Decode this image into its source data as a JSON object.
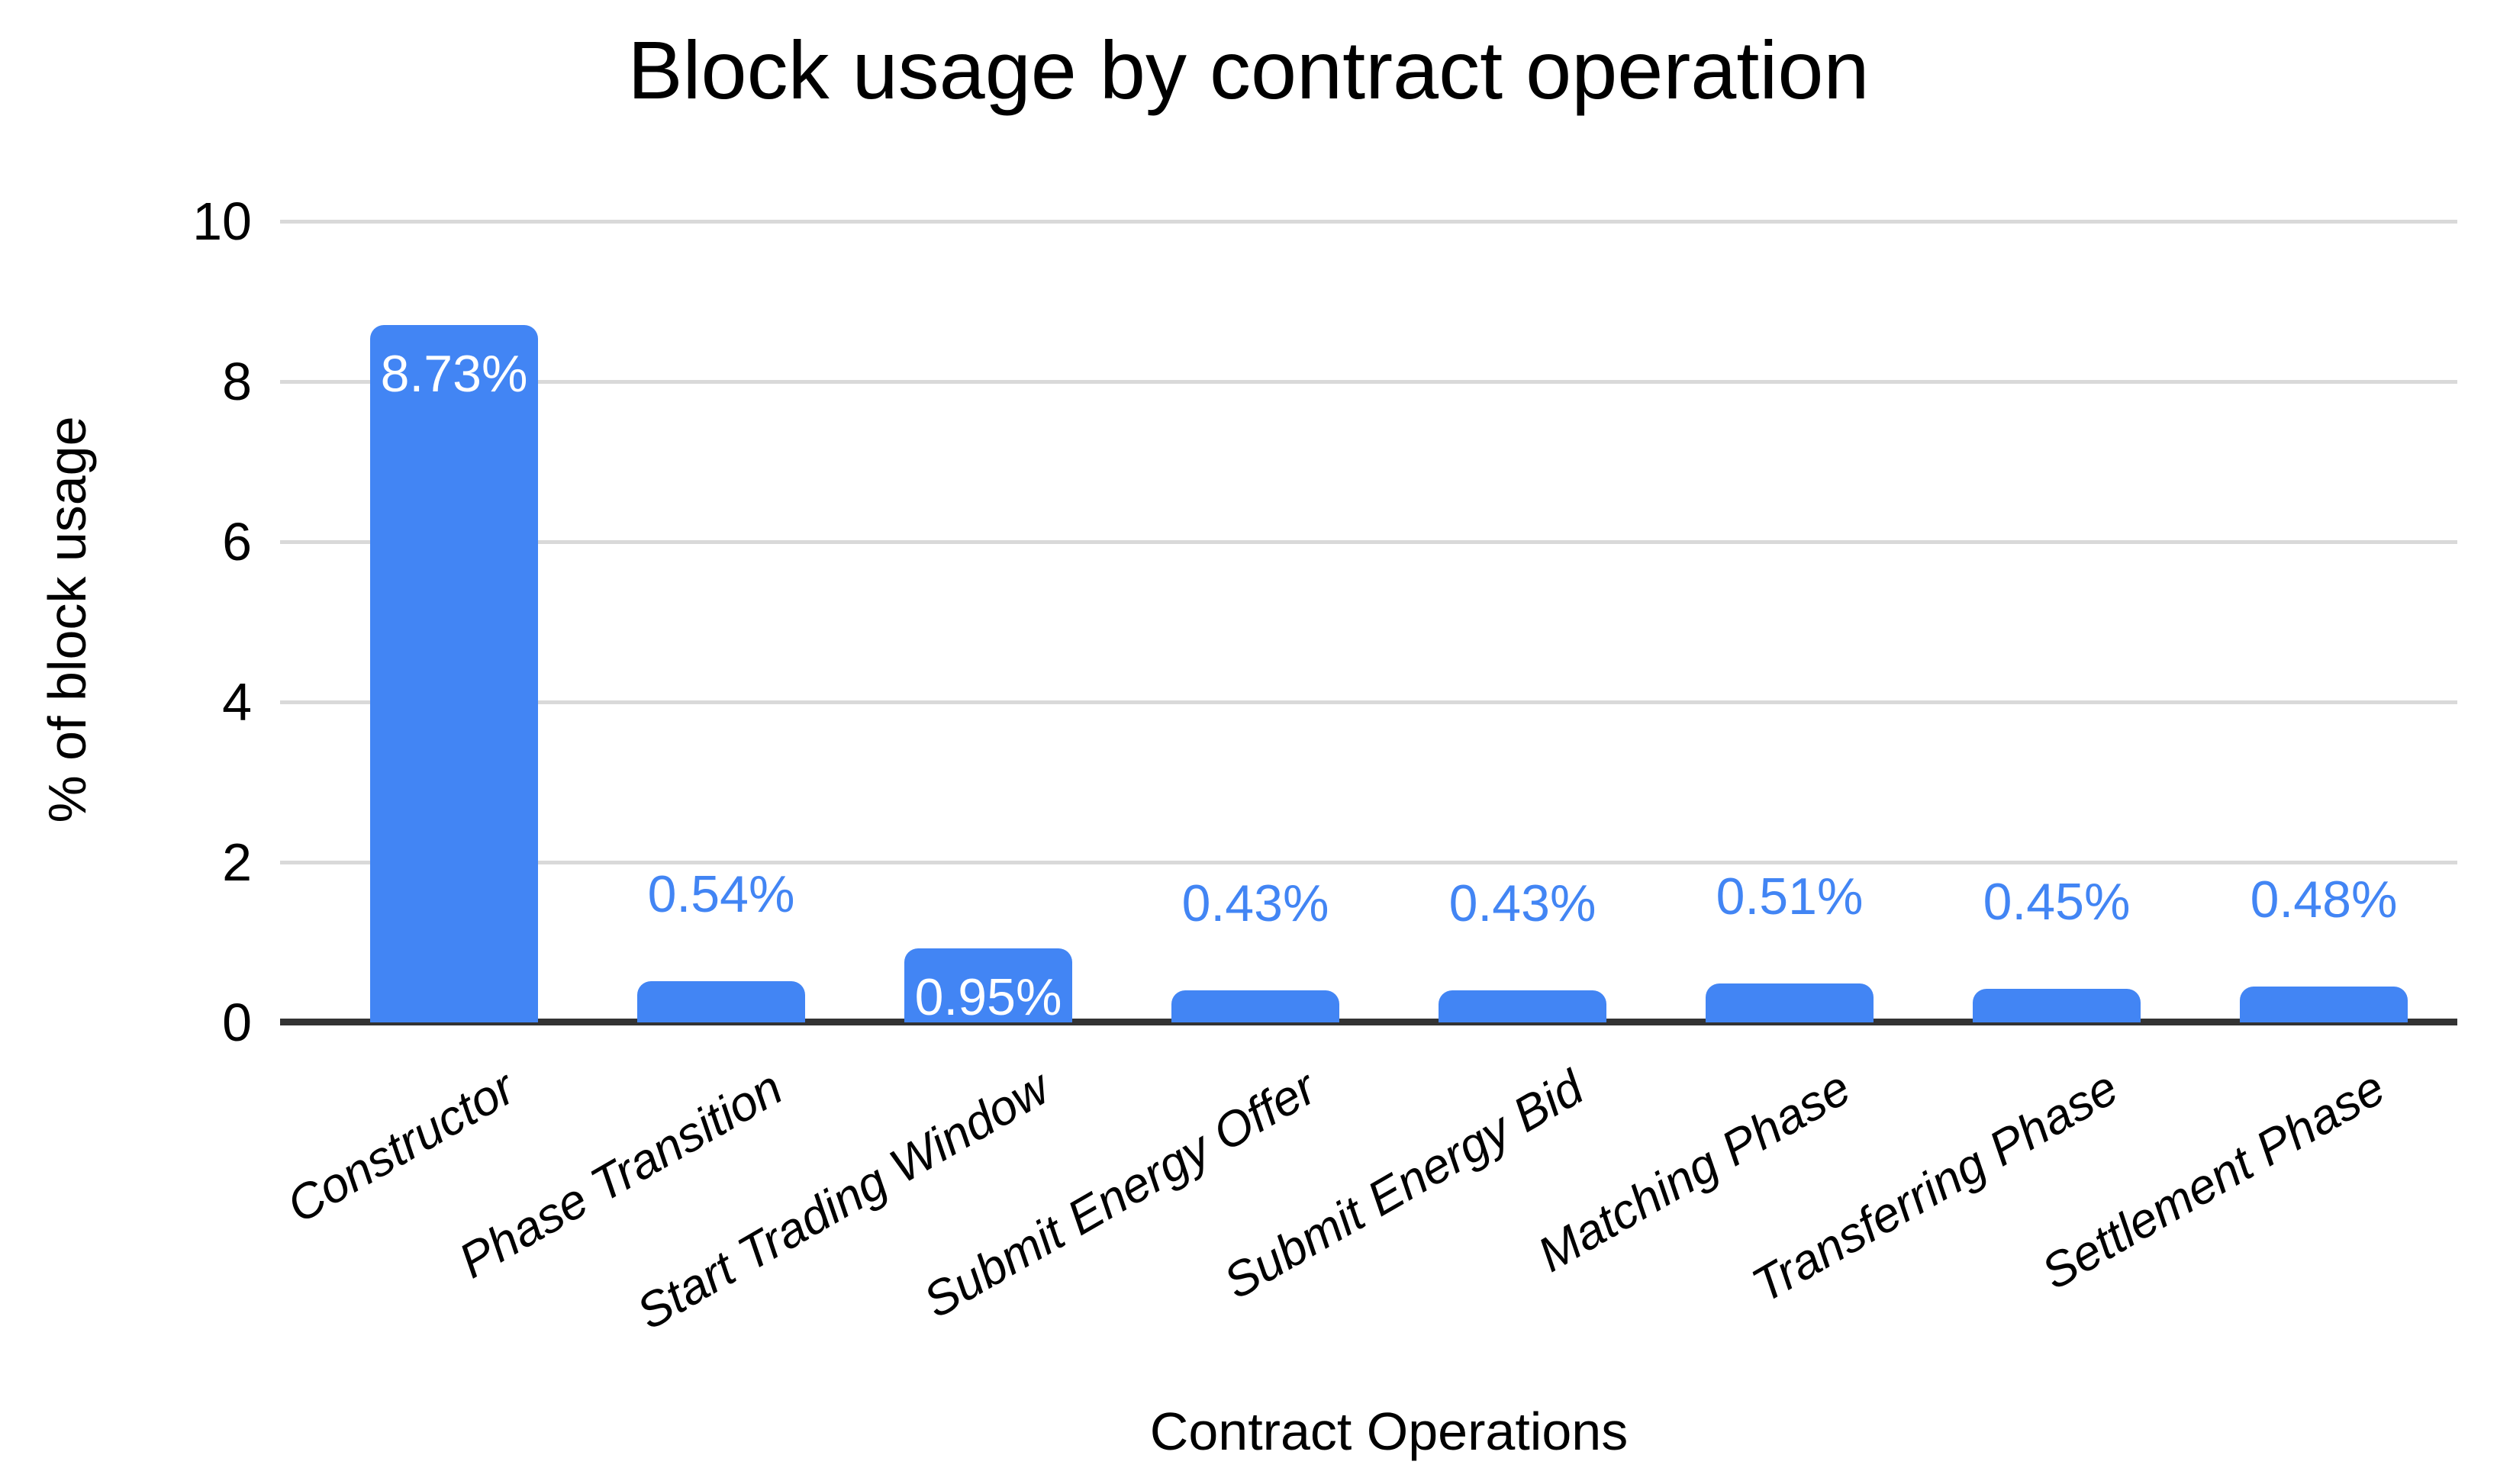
{
  "chart_data": {
    "type": "bar",
    "title": "Block usage by contract operation",
    "xlabel": "Contract Operations",
    "ylabel": "% of block usage",
    "categories": [
      "Constructor",
      "Phase Transition",
      "Start Trading Window",
      "Submit Energy Offer",
      "Submit Energy Bid",
      "Matching Phase",
      "Transferring Phase",
      "Settlement Phase"
    ],
    "values": [
      8.73,
      0.54,
      0.95,
      0.43,
      0.43,
      0.51,
      0.45,
      0.48
    ],
    "bar_labels": [
      "8.73%",
      "0.54%",
      "0.95%",
      "0.43%",
      "0.43%",
      "0.51%",
      "0.45%",
      "0.48%"
    ],
    "label_placement": [
      "inside",
      "outside",
      "inside",
      "outside",
      "outside",
      "outside",
      "outside",
      "outside"
    ],
    "ylim": [
      0,
      10
    ],
    "yticks": [
      "0",
      "2",
      "4",
      "6",
      "8",
      "10"
    ],
    "grid": "horizontal-only",
    "legend": "none",
    "colors": {
      "bar": "#4285f4",
      "label_inside": "#ffffff",
      "label_outside": "#4285f4",
      "gridline": "#d9d9d9",
      "axis_line": "#333333",
      "text": "#000000"
    }
  }
}
